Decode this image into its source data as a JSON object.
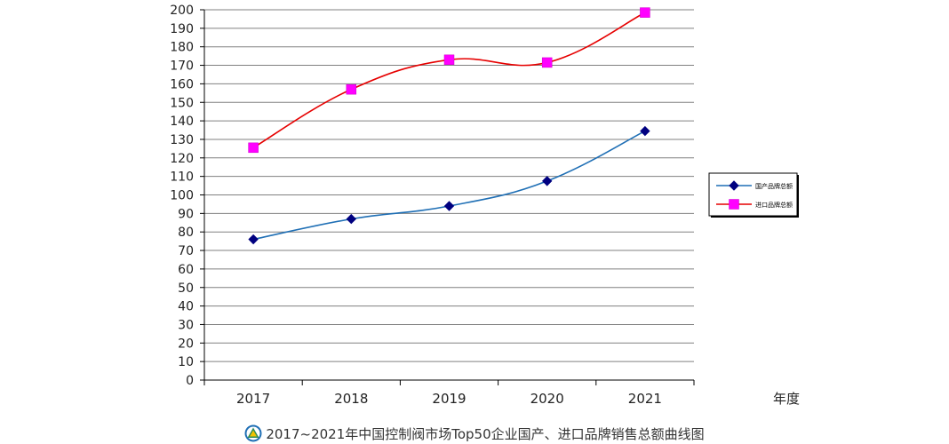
{
  "chart_data": {
    "type": "line",
    "title": "2017~2021年中国控制阀市场Top50企业国产、进口品牌销售总额曲线图",
    "xlabel": "年度",
    "ylabel": "",
    "categories": [
      "2017",
      "2018",
      "2019",
      "2020",
      "2021"
    ],
    "ylim": [
      0,
      200
    ],
    "yticks": [
      0,
      10,
      20,
      30,
      40,
      50,
      60,
      70,
      80,
      90,
      100,
      110,
      120,
      130,
      140,
      150,
      160,
      170,
      180,
      190,
      200
    ],
    "grid": true,
    "legend_position": "right",
    "series": [
      {
        "name": "国产品牌总额",
        "values": [
          76,
          87,
          94,
          107.5,
          134.5
        ],
        "line_color": "#1f6fb5",
        "marker": "diamond",
        "marker_color": "#000080"
      },
      {
        "name": "进口品牌总额",
        "values": [
          125.5,
          157,
          173,
          171.5,
          198.5
        ],
        "line_color": "#e60000",
        "marker": "square",
        "marker_color": "#ff00ff"
      }
    ]
  },
  "caption": {
    "text": "2017~2021年中国控制阀市场Top50企业国产、进口品牌销售总额曲线图",
    "logo": "triangle-logo-icon"
  }
}
